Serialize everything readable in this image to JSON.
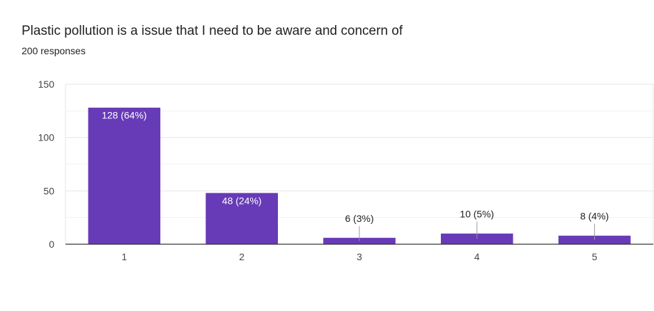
{
  "header": {
    "title": "Plastic pollution is a issue that I need to be aware and concern of",
    "subtitle": "200 responses"
  },
  "colors": {
    "bar": "#673ab7",
    "grid": "#e6e6e6",
    "axis": "#333333",
    "label_inside": "#ffffff",
    "label_outside": "#202124",
    "leader": "#999999"
  },
  "chart_data": {
    "type": "bar",
    "title": "Plastic pollution is a issue that I need to be aware and concern of",
    "subtitle": "200 responses",
    "categories": [
      "1",
      "2",
      "3",
      "4",
      "5"
    ],
    "values": [
      128,
      48,
      6,
      10,
      8
    ],
    "data_labels": [
      "128 (64%)",
      "48 (24%)",
      "6 (3%)",
      "10 (5%)",
      "8 (4%)"
    ],
    "ylim": [
      0,
      150
    ],
    "y_ticks": [
      0,
      50,
      100,
      150
    ],
    "grid": true,
    "xlabel": "",
    "ylabel": ""
  }
}
